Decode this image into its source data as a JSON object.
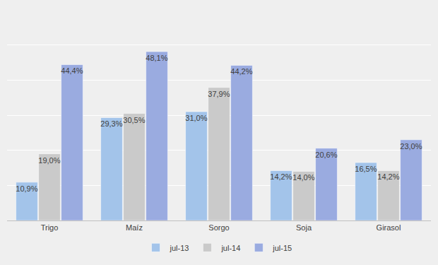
{
  "chart_data": {
    "type": "bar",
    "categories": [
      "Trigo",
      "Maíz",
      "Sorgo",
      "Soja",
      "Girasol"
    ],
    "series": [
      {
        "name": "jul-13",
        "color": "#a3c4ea",
        "values": [
          10.9,
          29.3,
          31.0,
          14.2,
          16.5
        ],
        "value_labels": [
          "10,9%",
          "29,3%",
          "31,0%",
          "14,2%",
          "16,5%"
        ]
      },
      {
        "name": "jul-14",
        "color": "#cacaca",
        "values": [
          19.0,
          30.5,
          37.9,
          14.0,
          14.2
        ],
        "value_labels": [
          "19,0%",
          "30,5%",
          "37,9%",
          "14,0%",
          "14,2%"
        ]
      },
      {
        "name": "jul-15",
        "color": "#9aabe0",
        "values": [
          44.4,
          48.1,
          44.2,
          20.6,
          23.0
        ],
        "value_labels": [
          "44,4%",
          "48,1%",
          "44,2%",
          "20,6%",
          "23,0%"
        ]
      }
    ],
    "ylim": [
      0,
      60
    ],
    "yticks": [
      0,
      10,
      20,
      30,
      40,
      50,
      60
    ],
    "grid": true,
    "legend": "bottom",
    "data_labels": true,
    "tick_labels": "x"
  }
}
